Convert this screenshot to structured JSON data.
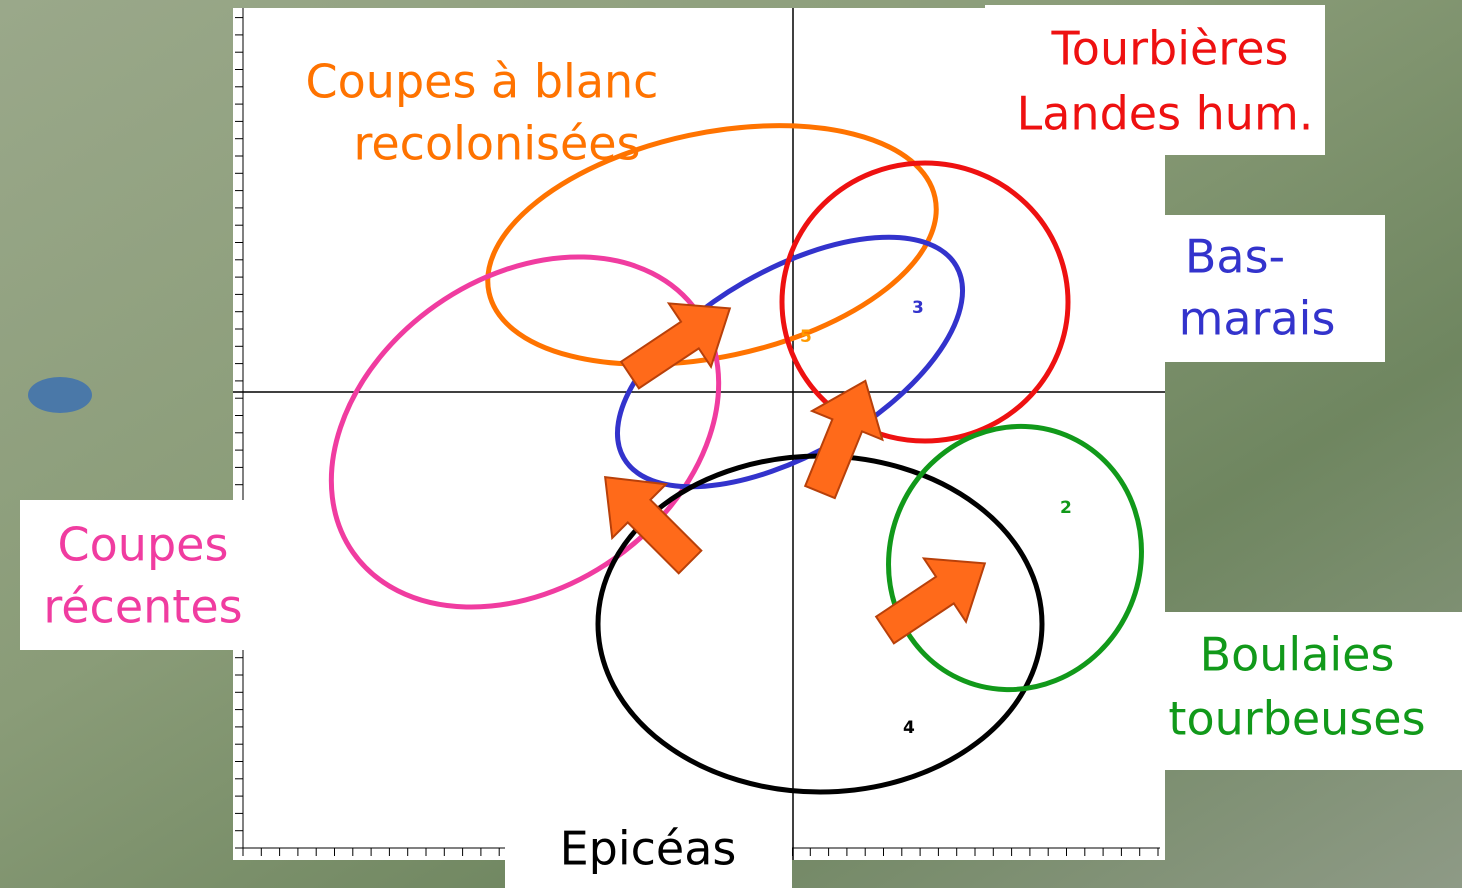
{
  "groups": [
    {
      "label": [
        "Coupes à blanc",
        "recolonisées"
      ],
      "number": "5"
    },
    {
      "label": [
        "Tourbières",
        "Landes hum."
      ]
    },
    {
      "label": [
        "Bas-",
        "marais"
      ],
      "number": "3"
    },
    {
      "label": [
        "Coupes",
        "récentes"
      ]
    },
    {
      "label": [
        "Boulaies",
        "tourbeuses"
      ],
      "number": "2"
    },
    {
      "label": [
        "Epicéas"
      ],
      "number": "4"
    }
  ]
}
